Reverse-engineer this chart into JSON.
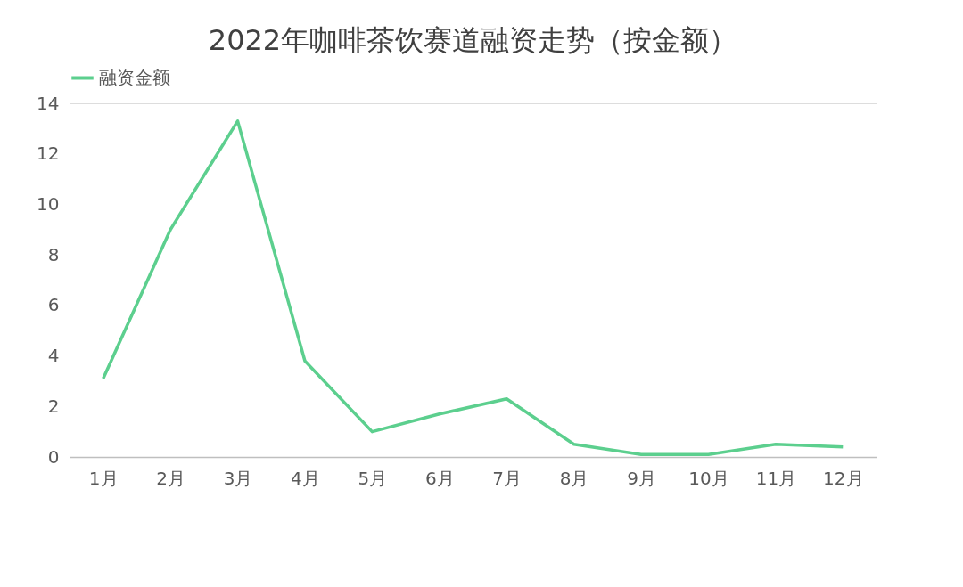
{
  "chart_data": {
    "type": "line",
    "title": "2022年咖啡茶饮赛道融资走势（按金额）",
    "categories": [
      "1月",
      "2月",
      "3月",
      "4月",
      "5月",
      "6月",
      "7月",
      "8月",
      "9月",
      "10月",
      "11月",
      "12月"
    ],
    "series": [
      {
        "name": "融资金额",
        "color": "#5ccf8e",
        "values": [
          3.1,
          9.0,
          13.3,
          3.8,
          1.0,
          1.7,
          2.3,
          0.5,
          0.1,
          0.1,
          0.5,
          0.4
        ]
      }
    ],
    "ylim": [
      0,
      14
    ],
    "yticks": [
      0,
      2,
      4,
      6,
      8,
      10,
      12,
      14
    ],
    "grid": false,
    "legend": "top",
    "marker": "none",
    "line_style": "solid"
  }
}
